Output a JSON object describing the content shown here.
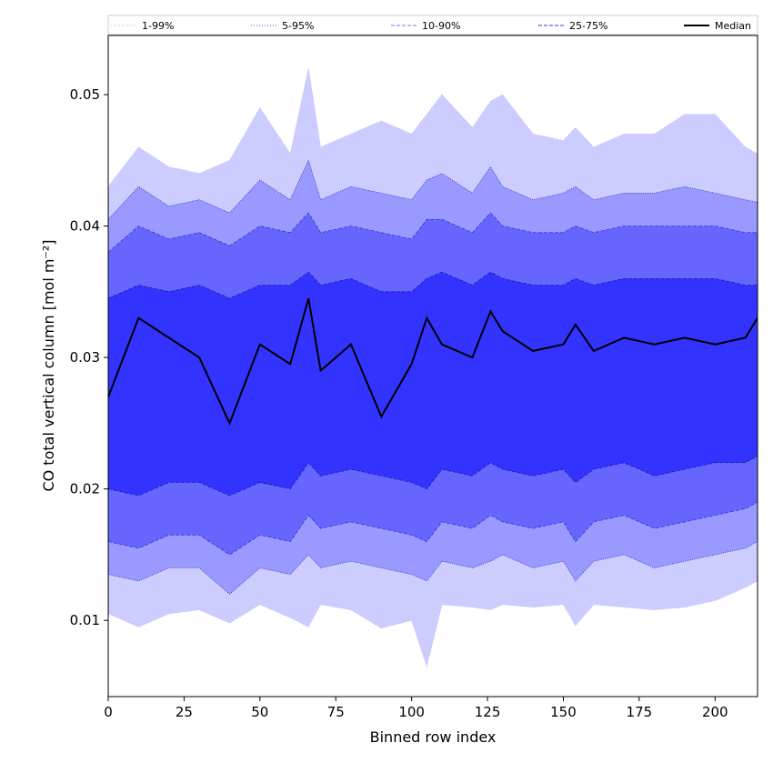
{
  "chart_data": {
    "type": "area",
    "xlabel": "Binned row index",
    "ylabel": "CO total vertical column [mol m⁻²]",
    "xlim": [
      0,
      214
    ],
    "ylim": [
      0.0042,
      0.0545
    ],
    "xticks": [
      0,
      25,
      50,
      75,
      100,
      125,
      150,
      175,
      200
    ],
    "yticks": [
      0.01,
      0.02,
      0.03,
      0.04,
      0.05
    ],
    "ytick_labels": [
      "0.01",
      "0.02",
      "0.03",
      "0.04",
      "0.05"
    ],
    "grid": false,
    "legend_placement": "top (horizontal row above plot)",
    "legend": [
      {
        "name": "1-99%",
        "style": "dotted",
        "color": "#b8b8ff"
      },
      {
        "name": "5-95%",
        "style": "dotted",
        "color": "#5555e0"
      },
      {
        "name": "10-90%",
        "style": "dashed",
        "color": "#7777ff"
      },
      {
        "name": "25-75%",
        "style": "dashed",
        "color": "#3333dd"
      },
      {
        "name": "Median",
        "style": "solid",
        "color": "#000000"
      }
    ],
    "band_colors": {
      "p1_99": "#ccccff",
      "p5_95": "#9999ff",
      "p10_90": "#6666ff",
      "p25_75": "#3333ff",
      "median": "#000000"
    },
    "x": [
      0,
      10,
      20,
      30,
      40,
      50,
      60,
      66,
      70,
      80,
      90,
      100,
      105,
      110,
      120,
      126,
      130,
      140,
      150,
      154,
      160,
      170,
      180,
      190,
      200,
      210,
      214
    ],
    "series": [
      {
        "name": "1-99%",
        "lower": [
          0.0105,
          0.0095,
          0.0105,
          0.0108,
          0.0098,
          0.0112,
          0.0102,
          0.0095,
          0.0112,
          0.0108,
          0.0094,
          0.01,
          0.0065,
          0.0112,
          0.011,
          0.0108,
          0.0112,
          0.011,
          0.0112,
          0.0096,
          0.0112,
          0.011,
          0.0108,
          0.011,
          0.0115,
          0.0125,
          0.013
        ],
        "upper": [
          0.043,
          0.046,
          0.0445,
          0.044,
          0.045,
          0.049,
          0.0455,
          0.052,
          0.046,
          0.047,
          0.048,
          0.047,
          0.0485,
          0.05,
          0.0475,
          0.0495,
          0.05,
          0.047,
          0.0465,
          0.0475,
          0.046,
          0.047,
          0.047,
          0.0485,
          0.0485,
          0.046,
          0.0455
        ]
      },
      {
        "name": "5-95%",
        "lower": [
          0.0135,
          0.013,
          0.014,
          0.014,
          0.012,
          0.014,
          0.0135,
          0.015,
          0.014,
          0.0145,
          0.014,
          0.0135,
          0.013,
          0.0145,
          0.014,
          0.0145,
          0.015,
          0.014,
          0.0145,
          0.013,
          0.0145,
          0.015,
          0.014,
          0.0145,
          0.015,
          0.0155,
          0.016
        ],
        "upper": [
          0.0405,
          0.043,
          0.0415,
          0.042,
          0.041,
          0.0435,
          0.042,
          0.045,
          0.042,
          0.043,
          0.0425,
          0.042,
          0.0435,
          0.044,
          0.0425,
          0.0445,
          0.043,
          0.042,
          0.0425,
          0.043,
          0.042,
          0.0425,
          0.0425,
          0.043,
          0.0425,
          0.042,
          0.0418
        ]
      },
      {
        "name": "10-90%",
        "lower": [
          0.016,
          0.0155,
          0.0165,
          0.0165,
          0.015,
          0.0165,
          0.016,
          0.018,
          0.017,
          0.0175,
          0.017,
          0.0165,
          0.016,
          0.0175,
          0.017,
          0.018,
          0.0175,
          0.017,
          0.0175,
          0.016,
          0.0175,
          0.018,
          0.017,
          0.0175,
          0.018,
          0.0185,
          0.019
        ],
        "upper": [
          0.038,
          0.04,
          0.039,
          0.0395,
          0.0385,
          0.04,
          0.0395,
          0.041,
          0.0395,
          0.04,
          0.0395,
          0.039,
          0.0405,
          0.0405,
          0.0395,
          0.041,
          0.04,
          0.0395,
          0.0395,
          0.04,
          0.0395,
          0.04,
          0.04,
          0.04,
          0.04,
          0.0395,
          0.0395
        ]
      },
      {
        "name": "25-75%",
        "lower": [
          0.02,
          0.0195,
          0.0205,
          0.0205,
          0.0195,
          0.0205,
          0.02,
          0.022,
          0.021,
          0.0215,
          0.021,
          0.0205,
          0.02,
          0.0215,
          0.021,
          0.022,
          0.0215,
          0.021,
          0.0215,
          0.0205,
          0.0215,
          0.022,
          0.021,
          0.0215,
          0.022,
          0.022,
          0.0225
        ],
        "upper": [
          0.0345,
          0.0355,
          0.035,
          0.0355,
          0.0345,
          0.0355,
          0.0355,
          0.0365,
          0.0355,
          0.036,
          0.035,
          0.035,
          0.036,
          0.0365,
          0.0355,
          0.0365,
          0.036,
          0.0355,
          0.0355,
          0.036,
          0.0355,
          0.036,
          0.036,
          0.036,
          0.036,
          0.0355,
          0.0355
        ]
      },
      {
        "name": "Median",
        "values": [
          0.027,
          0.033,
          0.0315,
          0.03,
          0.025,
          0.031,
          0.0295,
          0.0345,
          0.029,
          0.031,
          0.0255,
          0.0295,
          0.033,
          0.031,
          0.03,
          0.0335,
          0.032,
          0.0305,
          0.031,
          0.0325,
          0.0305,
          0.0315,
          0.031,
          0.0315,
          0.031,
          0.0315,
          0.033
        ]
      }
    ]
  }
}
